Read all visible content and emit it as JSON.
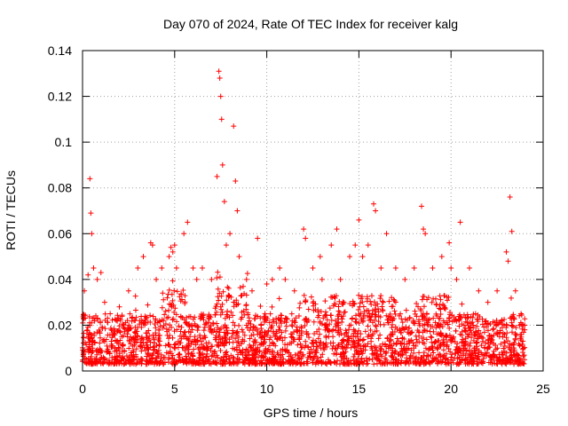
{
  "chart_data": {
    "type": "scatter",
    "title": "Day 070 of 2024, Rate Of TEC Index for receiver kalg",
    "xlabel": "GPS time / hours",
    "ylabel": "ROTI / TECUs",
    "xlim": [
      0,
      25
    ],
    "ylim": [
      0,
      0.14
    ],
    "xticks": [
      0,
      5,
      10,
      15,
      20,
      25
    ],
    "yticks": [
      0,
      0.02,
      0.04,
      0.06,
      0.08,
      0.1,
      0.12,
      0.14
    ],
    "grid": true,
    "marker": "+",
    "color": "#ff0000",
    "series": [
      {
        "name": "ROTI",
        "x": [
          0.1,
          0.3,
          0.4,
          0.45,
          0.5,
          0.6,
          0.8,
          1.0,
          1.2,
          1.5,
          2.0,
          2.5,
          3.0,
          3.3,
          3.7,
          3.8,
          4.0,
          4.3,
          4.7,
          4.8,
          4.9,
          5.0,
          5.1,
          5.5,
          5.7,
          6.0,
          6.2,
          6.5,
          7.0,
          7.3,
          7.4,
          7.45,
          7.5,
          7.55,
          7.6,
          7.7,
          7.8,
          8.0,
          8.2,
          8.3,
          8.4,
          8.5,
          8.9,
          9.2,
          9.5,
          10.0,
          10.3,
          10.7,
          11.0,
          11.5,
          12.0,
          12.1,
          12.5,
          12.9,
          13.0,
          13.5,
          13.8,
          14.0,
          14.5,
          14.8,
          15.0,
          15.2,
          15.5,
          15.8,
          15.9,
          16.2,
          16.5,
          17.0,
          17.5,
          18.0,
          18.4,
          18.5,
          18.6,
          19.0,
          19.5,
          19.9,
          20.0,
          20.3,
          20.5,
          21.0,
          21.5,
          22.0,
          22.5,
          23.0,
          23.1,
          23.2,
          23.3,
          23.5,
          23.8,
          24.0
        ],
        "y": [
          0.035,
          0.042,
          0.084,
          0.069,
          0.06,
          0.045,
          0.04,
          0.043,
          0.03,
          0.025,
          0.028,
          0.035,
          0.045,
          0.05,
          0.056,
          0.055,
          0.04,
          0.045,
          0.05,
          0.054,
          0.052,
          0.055,
          0.045,
          0.06,
          0.065,
          0.045,
          0.04,
          0.045,
          0.04,
          0.085,
          0.131,
          0.128,
          0.12,
          0.11,
          0.09,
          0.074,
          0.055,
          0.06,
          0.107,
          0.083,
          0.07,
          0.05,
          0.04,
          0.035,
          0.058,
          0.038,
          0.04,
          0.045,
          0.04,
          0.035,
          0.062,
          0.058,
          0.045,
          0.05,
          0.04,
          0.055,
          0.062,
          0.04,
          0.05,
          0.055,
          0.066,
          0.05,
          0.055,
          0.073,
          0.07,
          0.045,
          0.06,
          0.045,
          0.04,
          0.045,
          0.072,
          0.062,
          0.06,
          0.045,
          0.05,
          0.056,
          0.045,
          0.04,
          0.065,
          0.045,
          0.035,
          0.03,
          0.035,
          0.052,
          0.048,
          0.076,
          0.061,
          0.035,
          0.025,
          0.02
        ]
      }
    ]
  }
}
